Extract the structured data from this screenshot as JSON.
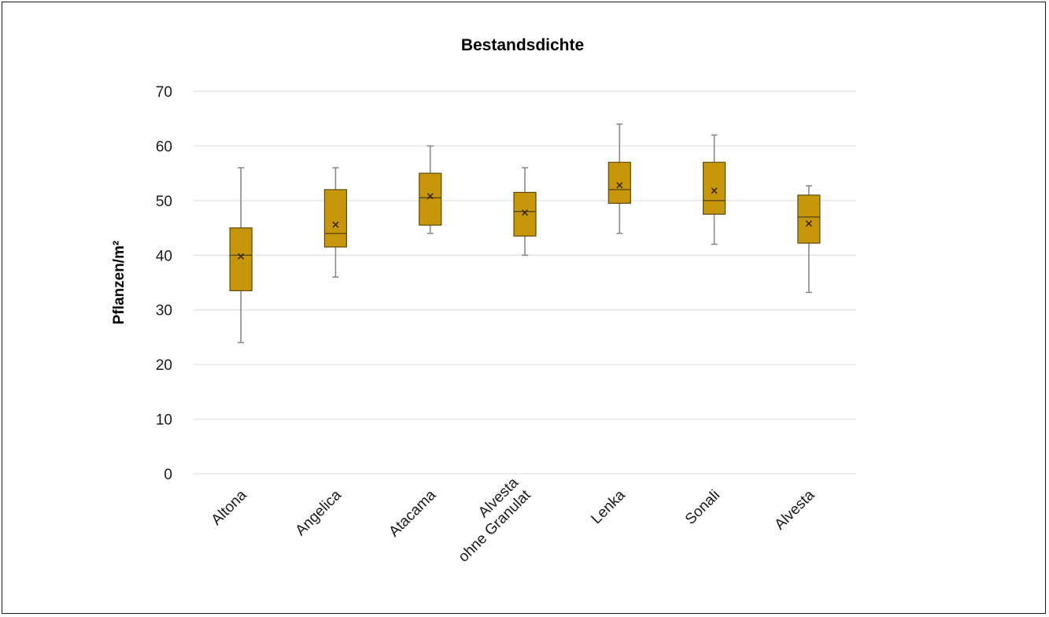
{
  "chart_data": {
    "type": "box",
    "title": "Bestandsdichte",
    "xlabel": "",
    "ylabel": "Pflanzen/m²",
    "ylim": [
      0,
      70
    ],
    "yticks": [
      0,
      10,
      20,
      30,
      40,
      50,
      60,
      70
    ],
    "grid": true,
    "colors": {
      "box_fill": "#c8960a",
      "box_stroke": "#5c4a12",
      "whisker": "#8a8a8a",
      "grid": "#e6e6e6",
      "mean_marker": "#3a2a08"
    },
    "categories": [
      [
        "Altona"
      ],
      [
        "Angelica"
      ],
      [
        "Atacama"
      ],
      [
        "Alvesta",
        "ohne Granulat"
      ],
      [
        "Lenka"
      ],
      [
        "Sonali"
      ],
      [
        "Alvesta"
      ]
    ],
    "series": [
      {
        "min": 24,
        "q1": 33.5,
        "median": 40,
        "q3": 45,
        "max": 56,
        "mean": 39.8
      },
      {
        "min": 36,
        "q1": 41.5,
        "median": 44,
        "q3": 52,
        "max": 56,
        "mean": 45.6
      },
      {
        "min": 44,
        "q1": 45.5,
        "median": 50.5,
        "q3": 55,
        "max": 60,
        "mean": 50.8
      },
      {
        "min": 40,
        "q1": 43.5,
        "median": 48,
        "q3": 51.5,
        "max": 56,
        "mean": 47.8
      },
      {
        "min": 44,
        "q1": 49.5,
        "median": 52,
        "q3": 57,
        "max": 64,
        "mean": 52.8
      },
      {
        "min": 42,
        "q1": 47.5,
        "median": 50,
        "q3": 57,
        "max": 62,
        "mean": 51.8
      },
      {
        "min": 33.2,
        "q1": 42.2,
        "median": 47,
        "q3": 51,
        "max": 52.7,
        "mean": 45.8
      }
    ]
  }
}
